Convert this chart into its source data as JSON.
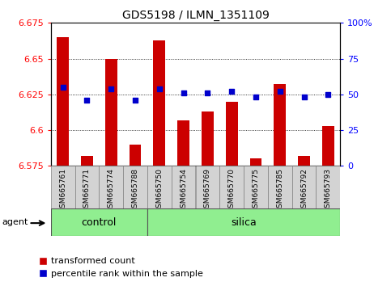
{
  "title": "GDS5198 / ILMN_1351109",
  "samples": [
    "GSM665761",
    "GSM665771",
    "GSM665774",
    "GSM665788",
    "GSM665750",
    "GSM665754",
    "GSM665769",
    "GSM665770",
    "GSM665775",
    "GSM665785",
    "GSM665792",
    "GSM665793"
  ],
  "groups": [
    "control",
    "control",
    "control",
    "control",
    "silica",
    "silica",
    "silica",
    "silica",
    "silica",
    "silica",
    "silica",
    "silica"
  ],
  "transformed_count": [
    6.665,
    6.582,
    6.65,
    6.59,
    6.663,
    6.607,
    6.613,
    6.62,
    6.58,
    6.632,
    6.582,
    6.603
  ],
  "percentile_rank": [
    55,
    46,
    54,
    46,
    54,
    51,
    51,
    52,
    48,
    52,
    48,
    50
  ],
  "ylim_left": [
    6.575,
    6.675
  ],
  "ylim_right": [
    0,
    100
  ],
  "yticks_left": [
    6.575,
    6.6,
    6.625,
    6.65,
    6.675
  ],
  "yticks_right": [
    0,
    25,
    50,
    75,
    100
  ],
  "ytick_labels_left": [
    "6.575",
    "6.6",
    "6.625",
    "6.65",
    "6.675"
  ],
  "ytick_labels_right": [
    "0",
    "25",
    "50",
    "75",
    "100%"
  ],
  "bar_color": "#cc0000",
  "dot_color": "#0000cc",
  "group_label_control": "control",
  "group_label_silica": "silica",
  "agent_label": "agent",
  "legend_bar": "transformed count",
  "legend_dot": "percentile rank within the sample",
  "bar_bottom": 6.575,
  "n_control": 4,
  "n_silica": 8
}
